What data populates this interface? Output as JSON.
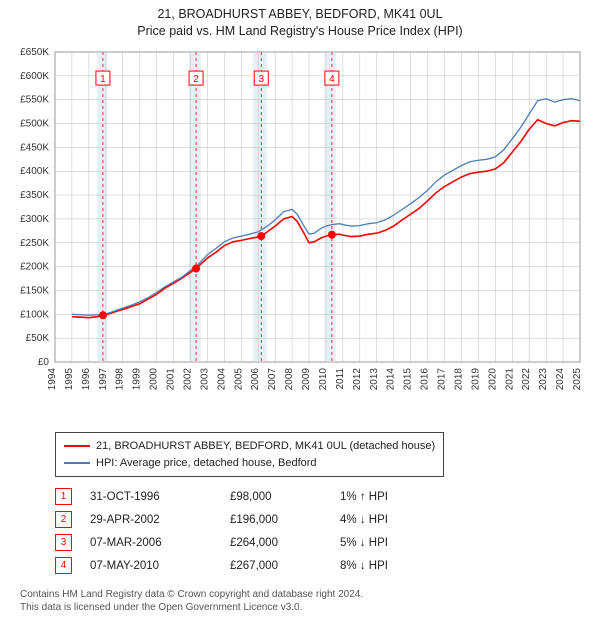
{
  "title_line1": "21, BROADHURST ABBEY, BEDFORD, MK41 0UL",
  "title_line2": "Price paid vs. HM Land Registry's House Price Index (HPI)",
  "chart": {
    "type": "line",
    "background_color": "#ffffff",
    "grid_color": "#bfbfbf",
    "axis_color": "#555555",
    "axis_label_color": "#333333",
    "axis_label_fontsize": 10.5,
    "tick_label_fontsize": 10,
    "x_axis": {
      "min": 1994,
      "max": 2025,
      "ticks": [
        1994,
        1995,
        1996,
        1997,
        1998,
        1999,
        2000,
        2001,
        2002,
        2003,
        2004,
        2005,
        2006,
        2007,
        2008,
        2009,
        2010,
        2011,
        2012,
        2013,
        2014,
        2015,
        2016,
        2017,
        2018,
        2019,
        2020,
        2021,
        2022,
        2023,
        2024,
        2025
      ],
      "tick_labels": [
        "1994",
        "1995",
        "1996",
        "1997",
        "1998",
        "1999",
        "2000",
        "2001",
        "2002",
        "2003",
        "2004",
        "2005",
        "2006",
        "2007",
        "2008",
        "2009",
        "2010",
        "2011",
        "2012",
        "2013",
        "2014",
        "2015",
        "2016",
        "2017",
        "2018",
        "2019",
        "2020",
        "2021",
        "2022",
        "2023",
        "2024",
        "2025"
      ],
      "rotation": -90
    },
    "y_axis": {
      "min": 0,
      "max": 650000,
      "tick_step": 50000,
      "tick_labels": [
        "£0",
        "£50K",
        "£100K",
        "£150K",
        "£200K",
        "£250K",
        "£300K",
        "£350K",
        "£400K",
        "£450K",
        "£500K",
        "£550K",
        "£600K",
        "£650K"
      ]
    },
    "highlight_bands": {
      "color": "#d6e2ef",
      "opacity": 0.55,
      "ranges": [
        [
          1996.5,
          1997.1
        ],
        [
          2001.9,
          2002.6
        ],
        [
          2005.7,
          2006.5
        ],
        [
          2009.9,
          2010.6
        ]
      ]
    },
    "event_lines": {
      "color": "#ff0000",
      "dash": "3,3",
      "width": 0.8,
      "x": [
        1996.83,
        2002.33,
        2006.18,
        2010.35
      ]
    },
    "event_markers": {
      "box_border": "#ff0000",
      "text_color": "#ff0000",
      "box_fill": "#ffffff",
      "labels": [
        "1",
        "2",
        "3",
        "4"
      ],
      "x": [
        1996.83,
        2002.33,
        2006.18,
        2010.35
      ],
      "y_box": 610000
    },
    "series": [
      {
        "name": "property",
        "label": "21, BROADHURST ABBEY, BEDFORD, MK41 0UL (detached house)",
        "color": "#ff0000",
        "width": 1.6,
        "points": [
          [
            1995.0,
            95000
          ],
          [
            1995.5,
            94000
          ],
          [
            1996.0,
            93000
          ],
          [
            1996.5,
            95000
          ],
          [
            1996.83,
            98000
          ],
          [
            1997.2,
            101000
          ],
          [
            1997.6,
            106000
          ],
          [
            1998.0,
            110000
          ],
          [
            1998.5,
            116000
          ],
          [
            1999.0,
            122000
          ],
          [
            1999.5,
            132000
          ],
          [
            2000.0,
            142000
          ],
          [
            2000.5,
            155000
          ],
          [
            2001.0,
            165000
          ],
          [
            2001.5,
            176000
          ],
          [
            2002.0,
            188000
          ],
          [
            2002.33,
            196000
          ],
          [
            2002.6,
            205000
          ],
          [
            2003.0,
            218000
          ],
          [
            2003.5,
            230000
          ],
          [
            2004.0,
            244000
          ],
          [
            2004.5,
            252000
          ],
          [
            2005.0,
            255000
          ],
          [
            2005.5,
            259000
          ],
          [
            2006.0,
            262000
          ],
          [
            2006.18,
            264000
          ],
          [
            2006.5,
            272000
          ],
          [
            2007.0,
            285000
          ],
          [
            2007.5,
            300000
          ],
          [
            2008.0,
            305000
          ],
          [
            2008.3,
            295000
          ],
          [
            2008.7,
            270000
          ],
          [
            2009.0,
            250000
          ],
          [
            2009.3,
            252000
          ],
          [
            2009.7,
            260000
          ],
          [
            2010.0,
            264000
          ],
          [
            2010.35,
            267000
          ],
          [
            2010.8,
            268000
          ],
          [
            2011.0,
            266000
          ],
          [
            2011.5,
            263000
          ],
          [
            2012.0,
            264000
          ],
          [
            2012.5,
            268000
          ],
          [
            2013.0,
            270000
          ],
          [
            2013.5,
            276000
          ],
          [
            2014.0,
            285000
          ],
          [
            2014.5,
            298000
          ],
          [
            2015.0,
            310000
          ],
          [
            2015.5,
            322000
          ],
          [
            2016.0,
            338000
          ],
          [
            2016.5,
            355000
          ],
          [
            2017.0,
            368000
          ],
          [
            2017.5,
            378000
          ],
          [
            2018.0,
            388000
          ],
          [
            2018.5,
            395000
          ],
          [
            2019.0,
            398000
          ],
          [
            2019.5,
            400000
          ],
          [
            2020.0,
            405000
          ],
          [
            2020.5,
            418000
          ],
          [
            2021.0,
            440000
          ],
          [
            2021.5,
            462000
          ],
          [
            2022.0,
            488000
          ],
          [
            2022.5,
            508000
          ],
          [
            2023.0,
            500000
          ],
          [
            2023.5,
            495000
          ],
          [
            2024.0,
            502000
          ],
          [
            2024.5,
            506000
          ],
          [
            2025.0,
            505000
          ]
        ]
      },
      {
        "name": "hpi",
        "label": "HPI: Average price, detached house, Bedford",
        "color": "#4a7ebb",
        "width": 1.3,
        "points": [
          [
            1995.0,
            100000
          ],
          [
            1995.5,
            99000
          ],
          [
            1996.0,
            98000
          ],
          [
            1996.5,
            99000
          ],
          [
            1996.83,
            99000
          ],
          [
            1997.2,
            103000
          ],
          [
            1997.6,
            108000
          ],
          [
            1998.0,
            113000
          ],
          [
            1998.5,
            119000
          ],
          [
            1999.0,
            126000
          ],
          [
            1999.5,
            135000
          ],
          [
            2000.0,
            146000
          ],
          [
            2000.5,
            158000
          ],
          [
            2001.0,
            168000
          ],
          [
            2001.5,
            178000
          ],
          [
            2002.0,
            192000
          ],
          [
            2002.33,
            200000
          ],
          [
            2002.6,
            210000
          ],
          [
            2003.0,
            225000
          ],
          [
            2003.5,
            238000
          ],
          [
            2004.0,
            252000
          ],
          [
            2004.5,
            260000
          ],
          [
            2005.0,
            264000
          ],
          [
            2005.5,
            268000
          ],
          [
            2006.0,
            273000
          ],
          [
            2006.18,
            277000
          ],
          [
            2006.5,
            284000
          ],
          [
            2007.0,
            298000
          ],
          [
            2007.5,
            315000
          ],
          [
            2008.0,
            320000
          ],
          [
            2008.3,
            310000
          ],
          [
            2008.7,
            285000
          ],
          [
            2009.0,
            268000
          ],
          [
            2009.3,
            270000
          ],
          [
            2009.7,
            280000
          ],
          [
            2010.0,
            285000
          ],
          [
            2010.35,
            288000
          ],
          [
            2010.8,
            290000
          ],
          [
            2011.0,
            288000
          ],
          [
            2011.5,
            285000
          ],
          [
            2012.0,
            286000
          ],
          [
            2012.5,
            290000
          ],
          [
            2013.0,
            292000
          ],
          [
            2013.5,
            298000
          ],
          [
            2014.0,
            308000
          ],
          [
            2014.5,
            320000
          ],
          [
            2015.0,
            332000
          ],
          [
            2015.5,
            345000
          ],
          [
            2016.0,
            360000
          ],
          [
            2016.5,
            378000
          ],
          [
            2017.0,
            392000
          ],
          [
            2017.5,
            402000
          ],
          [
            2018.0,
            412000
          ],
          [
            2018.5,
            420000
          ],
          [
            2019.0,
            423000
          ],
          [
            2019.5,
            425000
          ],
          [
            2020.0,
            430000
          ],
          [
            2020.5,
            445000
          ],
          [
            2021.0,
            468000
          ],
          [
            2021.5,
            492000
          ],
          [
            2022.0,
            520000
          ],
          [
            2022.5,
            548000
          ],
          [
            2023.0,
            552000
          ],
          [
            2023.5,
            545000
          ],
          [
            2024.0,
            550000
          ],
          [
            2024.5,
            552000
          ],
          [
            2025.0,
            548000
          ]
        ]
      }
    ],
    "sale_dots": {
      "color": "#ff0000",
      "radius": 4,
      "points": [
        [
          1996.83,
          98000
        ],
        [
          2002.33,
          196000
        ],
        [
          2006.18,
          264000
        ],
        [
          2010.35,
          267000
        ]
      ]
    }
  },
  "legend": {
    "items": [
      {
        "color": "#ff0000",
        "text": "21, BROADHURST ABBEY, BEDFORD, MK41 0UL (detached house)"
      },
      {
        "color": "#4a7ebb",
        "text": "HPI: Average price, detached house, Bedford"
      }
    ]
  },
  "sales": [
    {
      "n": "1",
      "date": "31-OCT-1996",
      "price": "£98,000",
      "diff": "1% ↑ HPI"
    },
    {
      "n": "2",
      "date": "29-APR-2002",
      "price": "£196,000",
      "diff": "4% ↓ HPI"
    },
    {
      "n": "3",
      "date": "07-MAR-2006",
      "price": "£264,000",
      "diff": "5% ↓ HPI"
    },
    {
      "n": "4",
      "date": "07-MAY-2010",
      "price": "£267,000",
      "diff": "8% ↓ HPI"
    }
  ],
  "attribution_line1": "Contains HM Land Registry data © Crown copyright and database right 2024.",
  "attribution_line2": "This data is licensed under the Open Government Licence v3.0."
}
